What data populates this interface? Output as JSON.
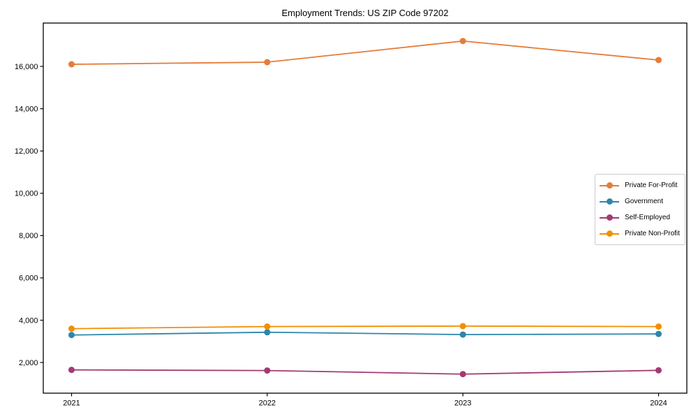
{
  "page": {
    "background": "#ffffff",
    "axis_color": "#000000"
  },
  "chart_data": {
    "type": "line",
    "title": "Employment Trends: US ZIP Code 97202",
    "categories": [
      "2021",
      "2022",
      "2023",
      "2024"
    ],
    "series": [
      {
        "name": "Private For-Profit",
        "color": "#E57C3B",
        "values": [
          16100,
          16200,
          17200,
          16300
        ]
      },
      {
        "name": "Government",
        "color": "#2E86AB",
        "values": [
          3300,
          3430,
          3320,
          3350
        ]
      },
      {
        "name": "Self-Employed",
        "color": "#A23B72",
        "values": [
          1650,
          1620,
          1450,
          1630
        ]
      },
      {
        "name": "Private Non-Profit",
        "color": "#F18F01",
        "values": [
          3600,
          3700,
          3720,
          3700
        ]
      }
    ],
    "xlabel": "",
    "ylabel": "",
    "ylim": [
      550,
      18050
    ],
    "yticks": {
      "values": [
        2000,
        4000,
        6000,
        8000,
        10000,
        12000,
        14000,
        16000
      ],
      "labels": [
        "2,000",
        "4,000",
        "6,000",
        "8,000",
        "10,000",
        "12,000",
        "14,000",
        "16,000"
      ]
    },
    "grid": false,
    "legend": {
      "position": "center-right"
    },
    "marker": "circle",
    "marker_radius": 4.5,
    "line_width": 1.8
  }
}
